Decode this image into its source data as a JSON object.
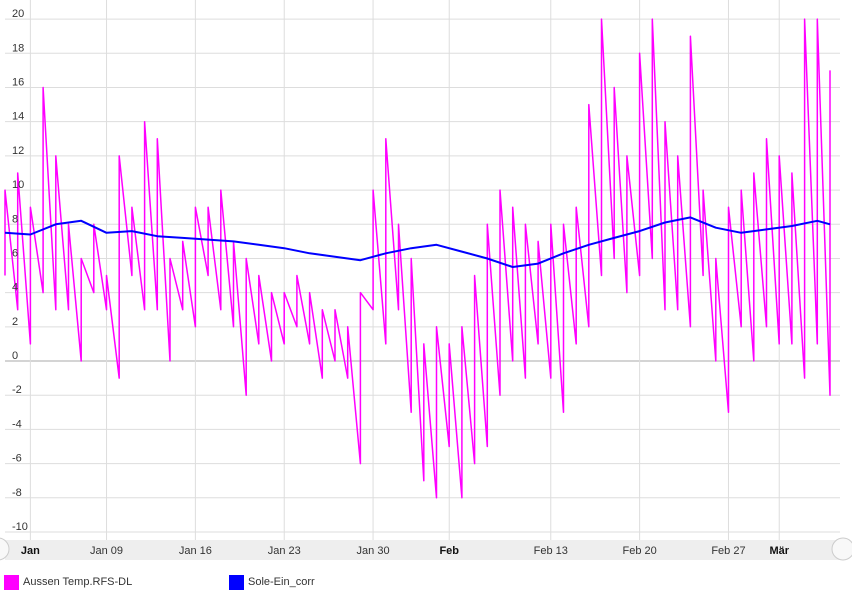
{
  "chart_data": {
    "type": "line",
    "title": "",
    "xlabel": "",
    "ylabel": "",
    "ylim": [
      -10,
      21
    ],
    "xlim": [
      "2000-01-01",
      "2000-03-06"
    ],
    "yticks": [
      20,
      18,
      16,
      14,
      12,
      10,
      8,
      6,
      4,
      2,
      0,
      -2,
      -4,
      -6,
      -8,
      -10
    ],
    "xticks": [
      {
        "label": "Jan",
        "date": "2000-01-03",
        "bold": true
      },
      {
        "label": "Jan 09",
        "date": "2000-01-09",
        "bold": false
      },
      {
        "label": "Jan 16",
        "date": "2000-01-16",
        "bold": false
      },
      {
        "label": "Jan 23",
        "date": "2000-01-23",
        "bold": false
      },
      {
        "label": "Jan 30",
        "date": "2000-01-30",
        "bold": false
      },
      {
        "label": "Feb",
        "date": "2000-02-05",
        "bold": true
      },
      {
        "label": "Feb 13",
        "date": "2000-02-13",
        "bold": false
      },
      {
        "label": "Feb 20",
        "date": "2000-02-20",
        "bold": false
      },
      {
        "label": "Feb 27",
        "date": "2000-02-27",
        "bold": false
      },
      {
        "label": "Mär",
        "date": "2000-03-02",
        "bold": true
      },
      {
        "label": "Mär",
        "date": "2000-03-09",
        "bold": false
      }
    ],
    "grid": true,
    "legend_position": "bottom-left",
    "series": [
      {
        "name": "Aussen Temp.RFS-DL",
        "color": "#ff00ff",
        "points": [
          [
            "2000-01-01",
            5
          ],
          [
            "2000-01-01",
            10
          ],
          [
            "2000-01-02",
            3
          ],
          [
            "2000-01-02",
            11
          ],
          [
            "2000-01-03",
            1
          ],
          [
            "2000-01-03",
            9
          ],
          [
            "2000-01-04",
            4
          ],
          [
            "2000-01-04",
            16
          ],
          [
            "2000-01-05",
            3
          ],
          [
            "2000-01-05",
            12
          ],
          [
            "2000-01-06",
            3
          ],
          [
            "2000-01-06",
            8
          ],
          [
            "2000-01-07",
            0
          ],
          [
            "2000-01-07",
            6
          ],
          [
            "2000-01-08",
            4
          ],
          [
            "2000-01-08",
            8
          ],
          [
            "2000-01-09",
            3
          ],
          [
            "2000-01-09",
            5
          ],
          [
            "2000-01-10",
            -1
          ],
          [
            "2000-01-10",
            12
          ],
          [
            "2000-01-11",
            5
          ],
          [
            "2000-01-11",
            9
          ],
          [
            "2000-01-12",
            3
          ],
          [
            "2000-01-12",
            14
          ],
          [
            "2000-01-13",
            3
          ],
          [
            "2000-01-13",
            13
          ],
          [
            "2000-01-14",
            0
          ],
          [
            "2000-01-14",
            6
          ],
          [
            "2000-01-15",
            3
          ],
          [
            "2000-01-15",
            7
          ],
          [
            "2000-01-16",
            2
          ],
          [
            "2000-01-16",
            9
          ],
          [
            "2000-01-17",
            5
          ],
          [
            "2000-01-17",
            9
          ],
          [
            "2000-01-18",
            3
          ],
          [
            "2000-01-18",
            10
          ],
          [
            "2000-01-19",
            2
          ],
          [
            "2000-01-19",
            7
          ],
          [
            "2000-01-20",
            -2
          ],
          [
            "2000-01-20",
            6
          ],
          [
            "2000-01-21",
            1
          ],
          [
            "2000-01-21",
            5
          ],
          [
            "2000-01-22",
            0
          ],
          [
            "2000-01-22",
            4
          ],
          [
            "2000-01-23",
            1
          ],
          [
            "2000-01-23",
            4
          ],
          [
            "2000-01-24",
            2
          ],
          [
            "2000-01-24",
            5
          ],
          [
            "2000-01-25",
            1
          ],
          [
            "2000-01-25",
            4
          ],
          [
            "2000-01-26",
            -1
          ],
          [
            "2000-01-26",
            3
          ],
          [
            "2000-01-27",
            0
          ],
          [
            "2000-01-27",
            3
          ],
          [
            "2000-01-28",
            -1
          ],
          [
            "2000-01-28",
            2
          ],
          [
            "2000-01-29",
            -6
          ],
          [
            "2000-01-29",
            4
          ],
          [
            "2000-01-30",
            3
          ],
          [
            "2000-01-30",
            10
          ],
          [
            "2000-01-31",
            1
          ],
          [
            "2000-01-31",
            13
          ],
          [
            "2000-02-01",
            3
          ],
          [
            "2000-02-01",
            8
          ],
          [
            "2000-02-02",
            -3
          ],
          [
            "2000-02-02",
            6
          ],
          [
            "2000-02-03",
            -7
          ],
          [
            "2000-02-03",
            1
          ],
          [
            "2000-02-04",
            -8
          ],
          [
            "2000-02-04",
            2
          ],
          [
            "2000-02-05",
            -5
          ],
          [
            "2000-02-05",
            1
          ],
          [
            "2000-02-06",
            -8
          ],
          [
            "2000-02-06",
            2
          ],
          [
            "2000-02-07",
            -6
          ],
          [
            "2000-02-07",
            5
          ],
          [
            "2000-02-08",
            -5
          ],
          [
            "2000-02-08",
            8
          ],
          [
            "2000-02-09",
            -2
          ],
          [
            "2000-02-09",
            10
          ],
          [
            "2000-02-10",
            0
          ],
          [
            "2000-02-10",
            9
          ],
          [
            "2000-02-11",
            -1
          ],
          [
            "2000-02-11",
            8
          ],
          [
            "2000-02-12",
            1
          ],
          [
            "2000-02-12",
            7
          ],
          [
            "2000-02-13",
            -1
          ],
          [
            "2000-02-13",
            8
          ],
          [
            "2000-02-14",
            -3
          ],
          [
            "2000-02-14",
            8
          ],
          [
            "2000-02-15",
            1
          ],
          [
            "2000-02-15",
            9
          ],
          [
            "2000-02-16",
            2
          ],
          [
            "2000-02-16",
            15
          ],
          [
            "2000-02-17",
            5
          ],
          [
            "2000-02-17",
            20
          ],
          [
            "2000-02-18",
            6
          ],
          [
            "2000-02-18",
            16
          ],
          [
            "2000-02-19",
            4
          ],
          [
            "2000-02-19",
            12
          ],
          [
            "2000-02-20",
            5
          ],
          [
            "2000-02-20",
            18
          ],
          [
            "2000-02-21",
            6
          ],
          [
            "2000-02-21",
            20
          ],
          [
            "2000-02-22",
            3
          ],
          [
            "2000-02-22",
            14
          ],
          [
            "2000-02-23",
            3
          ],
          [
            "2000-02-23",
            12
          ],
          [
            "2000-02-24",
            2
          ],
          [
            "2000-02-24",
            19
          ],
          [
            "2000-02-25",
            5
          ],
          [
            "2000-02-25",
            10
          ],
          [
            "2000-02-26",
            0
          ],
          [
            "2000-02-26",
            6
          ],
          [
            "2000-02-27",
            -3
          ],
          [
            "2000-02-27",
            9
          ],
          [
            "2000-02-28",
            2
          ],
          [
            "2000-02-28",
            10
          ],
          [
            "2000-02-29",
            0
          ],
          [
            "2000-02-29",
            11
          ],
          [
            "2000-03-01",
            2
          ],
          [
            "2000-03-01",
            13
          ],
          [
            "2000-03-02",
            1
          ],
          [
            "2000-03-02",
            12
          ],
          [
            "2000-03-03",
            1
          ],
          [
            "2000-03-03",
            11
          ],
          [
            "2000-03-04",
            -1
          ],
          [
            "2000-03-04",
            20
          ],
          [
            "2000-03-05",
            1
          ],
          [
            "2000-03-05",
            20
          ],
          [
            "2000-03-06",
            -2
          ],
          [
            "2000-03-06",
            17
          ]
        ]
      },
      {
        "name": "Sole-Ein_corr",
        "color": "#0000ff",
        "points": [
          [
            "2000-01-01",
            7.5
          ],
          [
            "2000-01-03",
            7.4
          ],
          [
            "2000-01-05",
            8.0
          ],
          [
            "2000-01-07",
            8.2
          ],
          [
            "2000-01-09",
            7.5
          ],
          [
            "2000-01-11",
            7.6
          ],
          [
            "2000-01-13",
            7.3
          ],
          [
            "2000-01-15",
            7.2
          ],
          [
            "2000-01-17",
            7.1
          ],
          [
            "2000-01-19",
            7.0
          ],
          [
            "2000-01-21",
            6.8
          ],
          [
            "2000-01-23",
            6.6
          ],
          [
            "2000-01-25",
            6.3
          ],
          [
            "2000-01-27",
            6.1
          ],
          [
            "2000-01-29",
            5.9
          ],
          [
            "2000-01-31",
            6.3
          ],
          [
            "2000-02-02",
            6.6
          ],
          [
            "2000-02-04",
            6.8
          ],
          [
            "2000-02-06",
            6.4
          ],
          [
            "2000-02-08",
            6.0
          ],
          [
            "2000-02-10",
            5.5
          ],
          [
            "2000-02-12",
            5.7
          ],
          [
            "2000-02-14",
            6.3
          ],
          [
            "2000-02-16",
            6.8
          ],
          [
            "2000-02-18",
            7.2
          ],
          [
            "2000-02-20",
            7.6
          ],
          [
            "2000-02-22",
            8.1
          ],
          [
            "2000-02-24",
            8.4
          ],
          [
            "2000-02-26",
            7.8
          ],
          [
            "2000-02-28",
            7.5
          ],
          [
            "2000-03-01",
            7.7
          ],
          [
            "2000-03-03",
            7.9
          ],
          [
            "2000-03-05",
            8.2
          ],
          [
            "2000-03-06",
            8.0
          ]
        ]
      }
    ]
  }
}
